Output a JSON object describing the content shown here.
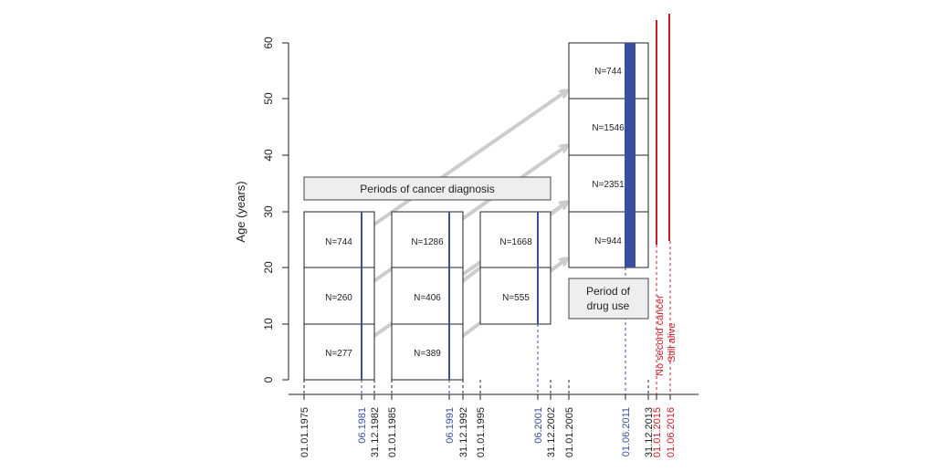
{
  "y_axis": {
    "label": "Age (years)",
    "ticks": [
      "0",
      "10",
      "20",
      "30",
      "40",
      "50",
      "60"
    ]
  },
  "x_dates": [
    {
      "text": "01.01.1975",
      "color": "#222222"
    },
    {
      "text": "06.1981",
      "color": "#3a4f9e"
    },
    {
      "text": "31.12.1982",
      "color": "#222222"
    },
    {
      "text": "01.01.1985",
      "color": "#222222"
    },
    {
      "text": "06.1991",
      "color": "#3a4f9e"
    },
    {
      "text": "31.12.1992",
      "color": "#222222"
    },
    {
      "text": "01.01.1995",
      "color": "#222222"
    },
    {
      "text": "06.2001",
      "color": "#3a4f9e"
    },
    {
      "text": "31.12.2002",
      "color": "#222222"
    },
    {
      "text": "01.01.2005",
      "color": "#222222"
    },
    {
      "text": "01.06.2011",
      "color": "#3a4f9e"
    },
    {
      "text": "31.12.2013",
      "color": "#222222"
    },
    {
      "text": "01.01.2015",
      "color": "#c8202a"
    },
    {
      "text": "01.06.2016",
      "color": "#c8202a"
    }
  ],
  "periods_label": "Periods of cancer diagnosis",
  "drug_label_line1": "Period of",
  "drug_label_line2": "drug use",
  "period1_counts": [
    "N=744",
    "N=260",
    "N=277"
  ],
  "period2_counts": [
    "N=1286",
    "N=406",
    "N=389"
  ],
  "period3_counts": [
    "N=1668",
    "N=555"
  ],
  "followup_counts": [
    "N=744",
    "N=1546",
    "N=2351",
    "N=944"
  ],
  "no_second_cancer": "No second cancer",
  "still_alive": "Still alive",
  "colors": {
    "blue": "#3a4f9e",
    "red": "#c8202a",
    "arrow": "#cccccc",
    "label_box": "#eeeeee"
  }
}
